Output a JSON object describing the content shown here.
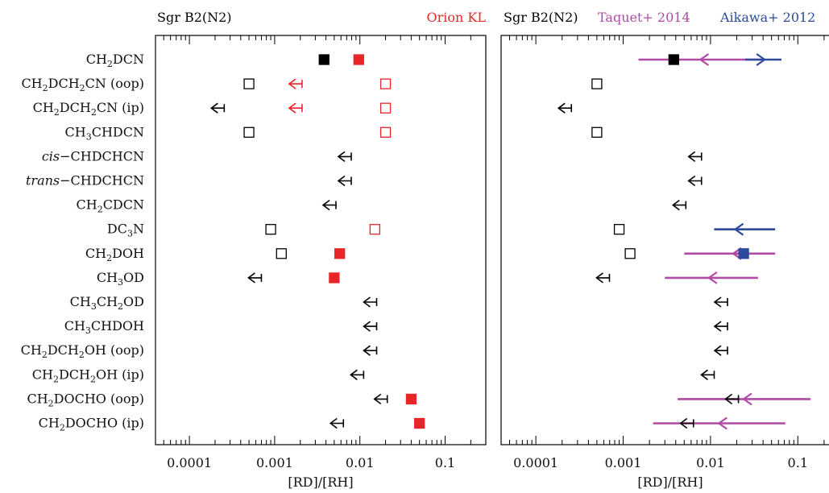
{
  "chart_data": [
    {
      "type": "scatter",
      "title_left": "Sgr B2(N2)",
      "title_right": "Orion KL",
      "title_right_color": "#e8262a",
      "xlabel": "[RD]/[RH]",
      "xscale": "log",
      "xlim": [
        4e-05,
        0.3
      ],
      "xticks": [
        {
          "v": 0.0001,
          "label": "0.0001"
        },
        {
          "v": 0.001,
          "label": "0.001"
        },
        {
          "v": 0.01,
          "label": "0.01"
        },
        {
          "v": 0.1,
          "label": "0.1"
        }
      ],
      "colors": {
        "sgr": "#000000",
        "orion": "#e8262a"
      },
      "molecules": [
        {
          "label": "CH₂DCN",
          "sgr": {
            "v": 0.0038,
            "kind": "filled"
          },
          "orion": {
            "v": 0.0097,
            "kind": "filled"
          }
        },
        {
          "label": "CH₂DCH₂CN (oop)",
          "sgr": {
            "v": 0.0005,
            "kind": "open"
          },
          "orion": [
            {
              "v": 0.0018,
              "kind": "upper"
            },
            {
              "v": 0.02,
              "kind": "open"
            }
          ]
        },
        {
          "label": "CH₂DCH₂CN (ip)",
          "sgr": {
            "v": 0.00022,
            "kind": "upper"
          },
          "orion": [
            {
              "v": 0.0018,
              "kind": "upper"
            },
            {
              "v": 0.02,
              "kind": "open"
            }
          ]
        },
        {
          "label": "CH₃CHDCN",
          "sgr": {
            "v": 0.0005,
            "kind": "open"
          },
          "orion": {
            "v": 0.02,
            "kind": "open"
          }
        },
        {
          "label": "cis−CHDCHCN",
          "sgr": {
            "v": 0.0068,
            "kind": "upper"
          }
        },
        {
          "label": "trans−CHDCHCN",
          "sgr": {
            "v": 0.0068,
            "kind": "upper"
          }
        },
        {
          "label": "CH₂CDCN",
          "sgr": {
            "v": 0.0045,
            "kind": "upper"
          }
        },
        {
          "label": "DC₃N",
          "sgr": {
            "v": 0.0009,
            "kind": "open"
          },
          "orion": {
            "v": 0.015,
            "kind": "open"
          }
        },
        {
          "label": "CH₂DOH",
          "sgr": {
            "v": 0.0012,
            "kind": "open"
          },
          "orion": {
            "v": 0.0058,
            "kind": "filled"
          }
        },
        {
          "label": "CH₃OD",
          "sgr": {
            "v": 0.0006,
            "kind": "upper"
          },
          "orion": {
            "v": 0.005,
            "kind": "filled"
          }
        },
        {
          "label": "CH₃CH₂OD",
          "sgr": {
            "v": 0.0135,
            "kind": "upper"
          }
        },
        {
          "label": "CH₃CHDOH",
          "sgr": {
            "v": 0.0135,
            "kind": "upper"
          }
        },
        {
          "label": "CH₂DCH₂OH (oop)",
          "sgr": {
            "v": 0.0135,
            "kind": "upper"
          }
        },
        {
          "label": "CH₂DCH₂OH (ip)",
          "sgr": {
            "v": 0.0095,
            "kind": "upper"
          }
        },
        {
          "label": "CH₂DOCHO (oop)",
          "sgr": {
            "v": 0.018,
            "kind": "upper"
          },
          "orion": {
            "v": 0.04,
            "kind": "filled"
          }
        },
        {
          "label": "CH₂DOCHO (ip)",
          "sgr": {
            "v": 0.0055,
            "kind": "upper"
          },
          "orion": {
            "v": 0.05,
            "kind": "filled"
          }
        }
      ]
    },
    {
      "type": "scatter",
      "title_parts": [
        {
          "text": "Sgr B2(N2)",
          "color": "#000000"
        },
        {
          "text": "Taquet+ 2014",
          "color": "#b04aa4"
        },
        {
          "text": "Aikawa+ 2012",
          "color": "#2c4b9c"
        }
      ],
      "xlabel": "[RD]/[RH]",
      "xscale": "log",
      "xlim": [
        4e-05,
        0.3
      ],
      "xticks": [
        {
          "v": 0.0001,
          "label": "0.0001"
        },
        {
          "v": 0.001,
          "label": "0.001"
        },
        {
          "v": 0.01,
          "label": "0.01"
        },
        {
          "v": 0.1,
          "label": "0.1"
        }
      ],
      "colors": {
        "sgr": "#000000",
        "taquet": "#b04aa4",
        "aikawa": "#2c4b9c"
      },
      "rows": [
        {
          "sgr": {
            "v": 0.0038,
            "kind": "filled"
          },
          "taquet": {
            "lo": 0.0015,
            "hi": 0.038,
            "arrow": 0.008
          },
          "aikawa": {
            "lo": 0.025,
            "hi": 0.065,
            "arrow": 0.04,
            "dir": "right"
          }
        },
        {
          "sgr": {
            "v": 0.0005,
            "kind": "open"
          }
        },
        {
          "sgr": {
            "v": 0.00022,
            "kind": "upper"
          }
        },
        {
          "sgr": {
            "v": 0.0005,
            "kind": "open"
          }
        },
        {
          "sgr": {
            "v": 0.0068,
            "kind": "upper"
          }
        },
        {
          "sgr": {
            "v": 0.0068,
            "kind": "upper"
          }
        },
        {
          "sgr": {
            "v": 0.0045,
            "kind": "upper"
          }
        },
        {
          "sgr": {
            "v": 0.0009,
            "kind": "open"
          },
          "aikawa": {
            "lo": 0.011,
            "hi": 0.055,
            "arrow": 0.02,
            "dir": "left"
          }
        },
        {
          "sgr": {
            "v": 0.0012,
            "kind": "open"
          },
          "taquet": {
            "lo": 0.005,
            "hi": 0.055,
            "arrow": 0.019
          },
          "aikawa": {
            "v": 0.024,
            "kind": "filled"
          }
        },
        {
          "sgr": {
            "v": 0.0006,
            "kind": "upper"
          },
          "taquet": {
            "lo": 0.003,
            "hi": 0.035,
            "arrow": 0.01
          }
        },
        {
          "sgr": {
            "v": 0.0135,
            "kind": "upper"
          }
        },
        {
          "sgr": {
            "v": 0.0135,
            "kind": "upper"
          }
        },
        {
          "sgr": {
            "v": 0.0135,
            "kind": "upper"
          }
        },
        {
          "sgr": {
            "v": 0.0095,
            "kind": "upper"
          }
        },
        {
          "sgr": {
            "v": 0.018,
            "kind": "upper"
          },
          "taquet": {
            "lo": 0.0042,
            "hi": 0.14,
            "arrow": 0.025
          }
        },
        {
          "sgr": {
            "v": 0.0055,
            "kind": "upper"
          },
          "taquet": {
            "lo": 0.0022,
            "hi": 0.072,
            "arrow": 0.013
          }
        }
      ]
    }
  ]
}
